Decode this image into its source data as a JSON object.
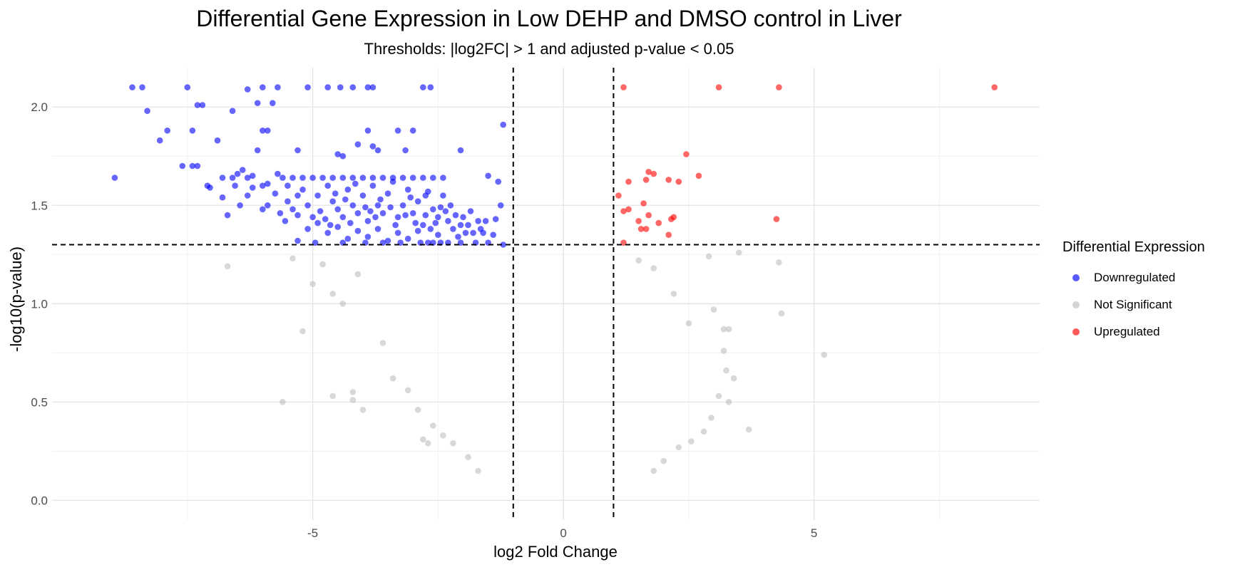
{
  "chart_data": {
    "type": "scatter",
    "title": "Differential Gene Expression in Low DEHP and DMSO control in Liver",
    "subtitle": "Thresholds: |log2FC| > 1 and adjusted p-value < 0.05",
    "xlabel": "log2 Fold Change",
    "ylabel": "-log10(p-value)",
    "xlim": [
      -10.2,
      9.5
    ],
    "ylim": [
      -0.1,
      2.2
    ],
    "x_ticks": [
      -5,
      0,
      5
    ],
    "x_tick_labels": [
      "-5",
      "0",
      "5"
    ],
    "y_ticks": [
      0.0,
      0.5,
      1.0,
      1.5,
      2.0
    ],
    "y_tick_labels": [
      "0.0",
      "0.5",
      "1.0",
      "1.5",
      "2.0"
    ],
    "grid": true,
    "threshold_lines": {
      "x": [
        -1,
        1
      ],
      "y": 1.3
    },
    "legend_title": "Differential Expression",
    "legend_position": "right",
    "series": [
      {
        "name": "Downregulated",
        "color": "#0000ff",
        "points": [
          [
            -8.6,
            2.1
          ],
          [
            -8.4,
            2.1
          ],
          [
            -7.5,
            2.1
          ],
          [
            -6.3,
            2.09
          ],
          [
            -6.0,
            2.1
          ],
          [
            -5.7,
            2.1
          ],
          [
            -5.1,
            2.1
          ],
          [
            -4.7,
            2.1
          ],
          [
            -4.45,
            2.1
          ],
          [
            -4.2,
            2.1
          ],
          [
            -3.9,
            2.1
          ],
          [
            -3.8,
            2.1
          ],
          [
            -2.8,
            2.1
          ],
          [
            -2.65,
            2.1
          ],
          [
            -8.3,
            1.98
          ],
          [
            -7.3,
            2.01
          ],
          [
            -7.2,
            2.01
          ],
          [
            -6.6,
            1.98
          ],
          [
            -6.1,
            2.02
          ],
          [
            -5.8,
            2.02
          ],
          [
            -7.9,
            1.88
          ],
          [
            -7.4,
            1.88
          ],
          [
            -6.9,
            1.83
          ],
          [
            -6.0,
            1.88
          ],
          [
            -5.9,
            1.88
          ],
          [
            -8.05,
            1.83
          ],
          [
            -3.9,
            1.88
          ],
          [
            -3.3,
            1.88
          ],
          [
            -3.0,
            1.88
          ],
          [
            -1.2,
            1.91
          ],
          [
            -5.3,
            1.78
          ],
          [
            -4.5,
            1.76
          ],
          [
            -4.4,
            1.75
          ],
          [
            -4.1,
            1.81
          ],
          [
            -3.8,
            1.8
          ],
          [
            -3.7,
            1.78
          ],
          [
            -3.15,
            1.78
          ],
          [
            -6.1,
            1.78
          ],
          [
            -2.05,
            1.78
          ],
          [
            -7.6,
            1.7
          ],
          [
            -7.3,
            1.7
          ],
          [
            -7.4,
            1.7
          ],
          [
            -8.95,
            1.64
          ],
          [
            -7.1,
            1.6
          ],
          [
            -7.05,
            1.59
          ],
          [
            -1.5,
            1.65
          ],
          [
            -1.3,
            1.62
          ],
          [
            -1.25,
            1.5
          ],
          [
            -1.35,
            1.43
          ],
          [
            -1.2,
            1.3
          ],
          [
            -1.4,
            1.35
          ],
          [
            -6.5,
            1.66
          ],
          [
            -6.4,
            1.68
          ],
          [
            -6.3,
            1.64
          ],
          [
            -6.2,
            1.65
          ],
          [
            -5.9,
            1.61
          ],
          [
            -5.7,
            1.66
          ],
          [
            -5.5,
            1.6
          ],
          [
            -5.3,
            1.55
          ],
          [
            -6.8,
            1.64
          ],
          [
            -6.6,
            1.64
          ],
          [
            -6.2,
            1.59
          ],
          [
            -6.0,
            1.6
          ],
          [
            -6.3,
            1.55
          ],
          [
            -6.45,
            1.5
          ],
          [
            -6.0,
            1.48
          ],
          [
            -6.7,
            1.45
          ],
          [
            -5.9,
            1.5
          ],
          [
            -5.4,
            1.48
          ],
          [
            -5.3,
            1.45
          ],
          [
            -5.1,
            1.5
          ],
          [
            -5.0,
            1.44
          ],
          [
            -4.9,
            1.55
          ],
          [
            -4.7,
            1.6
          ],
          [
            -4.6,
            1.52
          ],
          [
            -4.5,
            1.48
          ],
          [
            -4.4,
            1.44
          ],
          [
            -4.3,
            1.58
          ],
          [
            -4.2,
            1.5
          ],
          [
            -4.1,
            1.46
          ],
          [
            -4.0,
            1.55
          ],
          [
            -3.9,
            1.42
          ],
          [
            -3.8,
            1.6
          ],
          [
            -3.7,
            1.5
          ],
          [
            -3.6,
            1.46
          ],
          [
            -3.5,
            1.56
          ],
          [
            -3.4,
            1.62
          ],
          [
            -3.3,
            1.44
          ],
          [
            -3.2,
            1.5
          ],
          [
            -3.1,
            1.58
          ],
          [
            -3.0,
            1.46
          ],
          [
            -2.9,
            1.52
          ],
          [
            -2.8,
            1.4
          ],
          [
            -2.7,
            1.57
          ],
          [
            -2.6,
            1.48
          ],
          [
            -2.5,
            1.44
          ],
          [
            -2.4,
            1.55
          ],
          [
            -2.3,
            1.42
          ],
          [
            -2.2,
            1.38
          ],
          [
            -2.1,
            1.34
          ],
          [
            -2.0,
            1.44
          ],
          [
            -1.9,
            1.4
          ],
          [
            -1.8,
            1.36
          ],
          [
            -1.7,
            1.42
          ],
          [
            -1.6,
            1.36
          ],
          [
            -5.6,
            1.64
          ],
          [
            -5.4,
            1.64
          ],
          [
            -5.2,
            1.64
          ],
          [
            -5.0,
            1.64
          ],
          [
            -4.8,
            1.64
          ],
          [
            -4.6,
            1.64
          ],
          [
            -4.4,
            1.64
          ],
          [
            -4.2,
            1.64
          ],
          [
            -4.0,
            1.64
          ],
          [
            -3.8,
            1.64
          ],
          [
            -3.6,
            1.64
          ],
          [
            -3.4,
            1.64
          ],
          [
            -3.2,
            1.64
          ],
          [
            -3.0,
            1.64
          ],
          [
            -2.8,
            1.64
          ],
          [
            -2.6,
            1.64
          ],
          [
            -2.4,
            1.64
          ],
          [
            -5.1,
            1.38
          ],
          [
            -4.9,
            1.41
          ],
          [
            -4.7,
            1.36
          ],
          [
            -4.5,
            1.39
          ],
          [
            -4.3,
            1.33
          ],
          [
            -4.1,
            1.37
          ],
          [
            -3.9,
            1.34
          ],
          [
            -3.7,
            1.38
          ],
          [
            -3.5,
            1.32
          ],
          [
            -3.3,
            1.36
          ],
          [
            -3.1,
            1.33
          ],
          [
            -2.9,
            1.37
          ],
          [
            -2.7,
            1.31
          ],
          [
            -2.5,
            1.35
          ],
          [
            -2.3,
            1.31
          ],
          [
            -5.3,
            1.32
          ],
          [
            -4.95,
            1.31
          ],
          [
            -4.4,
            1.31
          ],
          [
            -3.95,
            1.31
          ],
          [
            -3.6,
            1.31
          ],
          [
            -3.25,
            1.31
          ],
          [
            -2.85,
            1.31
          ],
          [
            -2.6,
            1.31
          ],
          [
            -2.45,
            1.31
          ],
          [
            -2.05,
            1.31
          ],
          [
            -1.75,
            1.31
          ],
          [
            -1.5,
            1.31
          ],
          [
            -5.5,
            1.52
          ],
          [
            -5.2,
            1.58
          ],
          [
            -4.85,
            1.47
          ],
          [
            -4.55,
            1.56
          ],
          [
            -4.25,
            1.41
          ],
          [
            -3.95,
            1.49
          ],
          [
            -3.65,
            1.53
          ],
          [
            -3.35,
            1.4
          ],
          [
            -3.05,
            1.54
          ],
          [
            -2.75,
            1.45
          ],
          [
            -2.45,
            1.49
          ],
          [
            -2.15,
            1.45
          ],
          [
            -1.85,
            1.47
          ],
          [
            -1.55,
            1.42
          ],
          [
            -6.8,
            1.54
          ],
          [
            -6.55,
            1.6
          ],
          [
            -5.75,
            1.56
          ],
          [
            -5.65,
            1.46
          ],
          [
            -4.15,
            1.61
          ],
          [
            -3.45,
            1.49
          ],
          [
            -2.55,
            1.41
          ],
          [
            -2.35,
            1.47
          ],
          [
            -2.25,
            1.5
          ],
          [
            -1.95,
            1.36
          ],
          [
            -1.65,
            1.38
          ],
          [
            -5.55,
            1.42
          ],
          [
            -4.75,
            1.43
          ],
          [
            -4.35,
            1.53
          ],
          [
            -3.75,
            1.44
          ],
          [
            -3.15,
            1.45
          ],
          [
            -2.95,
            1.41
          ],
          [
            -2.65,
            1.38
          ],
          [
            -4.65,
            1.4
          ],
          [
            -3.85,
            1.47
          ],
          [
            -2.75,
            1.55
          ],
          [
            -2.05,
            1.4
          ]
        ]
      },
      {
        "name": "Not Significant",
        "color": "#bebebe",
        "points": [
          [
            -6.7,
            1.19
          ],
          [
            -5.2,
            0.86
          ],
          [
            -5.6,
            0.5
          ],
          [
            -4.6,
            0.53
          ],
          [
            -4.2,
            0.55
          ],
          [
            -4.2,
            0.51
          ],
          [
            -4.0,
            0.46
          ],
          [
            -2.8,
            0.31
          ],
          [
            -2.7,
            0.29
          ],
          [
            -5.4,
            1.23
          ],
          [
            -5.0,
            1.1
          ],
          [
            -4.6,
            1.05
          ],
          [
            -4.4,
            1.0
          ],
          [
            -3.6,
            0.8
          ],
          [
            -3.4,
            0.62
          ],
          [
            -3.1,
            0.56
          ],
          [
            -2.9,
            0.46
          ],
          [
            -2.6,
            0.38
          ],
          [
            -2.4,
            0.33
          ],
          [
            -2.2,
            0.29
          ],
          [
            -1.9,
            0.22
          ],
          [
            -1.7,
            0.15
          ],
          [
            -4.8,
            1.2
          ],
          [
            -4.1,
            1.15
          ],
          [
            3.5,
            1.26
          ],
          [
            4.3,
            1.21
          ],
          [
            3.7,
            0.36
          ],
          [
            5.2,
            0.74
          ],
          [
            4.35,
            0.95
          ],
          [
            3.3,
            0.87
          ],
          [
            3.2,
            0.87
          ],
          [
            3.4,
            0.62
          ],
          [
            3.25,
            0.66
          ],
          [
            3.1,
            0.53
          ],
          [
            2.95,
            0.42
          ],
          [
            2.8,
            0.35
          ],
          [
            2.55,
            0.3
          ],
          [
            2.3,
            0.27
          ],
          [
            2.0,
            0.2
          ],
          [
            1.8,
            0.15
          ],
          [
            2.9,
            1.24
          ],
          [
            3.0,
            0.97
          ],
          [
            3.2,
            0.76
          ],
          [
            3.3,
            0.5
          ],
          [
            1.5,
            1.22
          ],
          [
            1.8,
            1.18
          ],
          [
            2.2,
            1.05
          ],
          [
            2.5,
            0.9
          ]
        ]
      },
      {
        "name": "Upregulated",
        "color": "#ff0000",
        "points": [
          [
            1.2,
            2.1
          ],
          [
            3.1,
            2.1
          ],
          [
            4.3,
            2.1
          ],
          [
            8.6,
            2.1
          ],
          [
            2.45,
            1.76
          ],
          [
            2.7,
            1.65
          ],
          [
            1.7,
            1.67
          ],
          [
            1.8,
            1.66
          ],
          [
            1.65,
            1.63
          ],
          [
            2.1,
            1.63
          ],
          [
            2.3,
            1.62
          ],
          [
            1.3,
            1.62
          ],
          [
            1.1,
            1.55
          ],
          [
            1.6,
            1.51
          ],
          [
            1.3,
            1.48
          ],
          [
            1.2,
            1.47
          ],
          [
            1.7,
            1.45
          ],
          [
            2.15,
            1.43
          ],
          [
            2.2,
            1.44
          ],
          [
            4.25,
            1.43
          ],
          [
            1.5,
            1.42
          ],
          [
            1.9,
            1.41
          ],
          [
            1.55,
            1.38
          ],
          [
            1.65,
            1.38
          ],
          [
            2.1,
            1.35
          ],
          [
            1.2,
            1.31
          ]
        ]
      }
    ]
  }
}
